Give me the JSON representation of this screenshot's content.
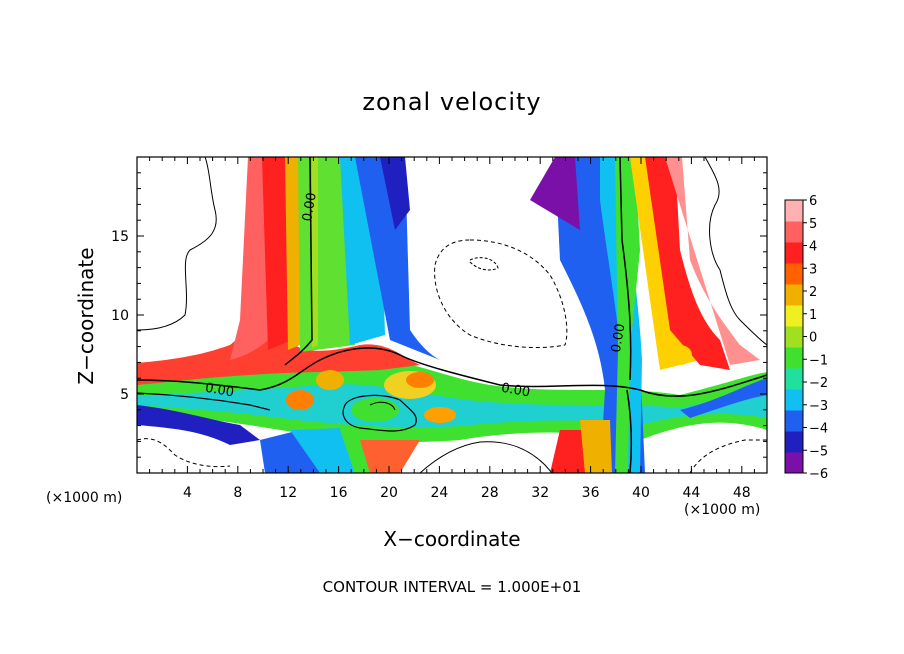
{
  "chart_data": {
    "type": "heatmap",
    "title": "zonal velocity",
    "xlabel": "X−coordinate",
    "ylabel": "Z−coordinate",
    "x_unit_left": "(×1000 m)",
    "x_unit_right": "(×1000 m)",
    "xlim": [
      0,
      50
    ],
    "ylim": [
      0,
      20
    ],
    "xticks": [
      4,
      8,
      12,
      16,
      20,
      24,
      28,
      32,
      36,
      40,
      44,
      48
    ],
    "yticks": [
      5,
      10,
      15
    ],
    "colorbar": {
      "min": -6,
      "max": 6,
      "ticks": [
        "6",
        "5",
        "4",
        "3",
        "2",
        "1",
        "0",
        "−1",
        "−2",
        "−3",
        "−4",
        "−5",
        "−6"
      ]
    },
    "contour_labels": [
      {
        "text": "0.00",
        "x": 14,
        "z": 16.8
      },
      {
        "text": "0.00",
        "x": 6.5,
        "z": 5.0
      },
      {
        "text": "0.00",
        "x": 30,
        "z": 5.0
      },
      {
        "text": "0.00",
        "x": 38.5,
        "z": 8.5
      }
    ],
    "contour_interval_note": "CONTOUR INTERVAL = 1.000E+01",
    "grid": false,
    "legend": "colorbar-right"
  },
  "colors": {
    "scale": [
      "#7a10a8",
      "#2020c0",
      "#2060f0",
      "#10c0f0",
      "#20e0a0",
      "#40e030",
      "#a0e020",
      "#f0f020",
      "#f0b000",
      "#ff6000",
      "#ff2020",
      "#ff6060",
      "#ffb0b0"
    ]
  }
}
